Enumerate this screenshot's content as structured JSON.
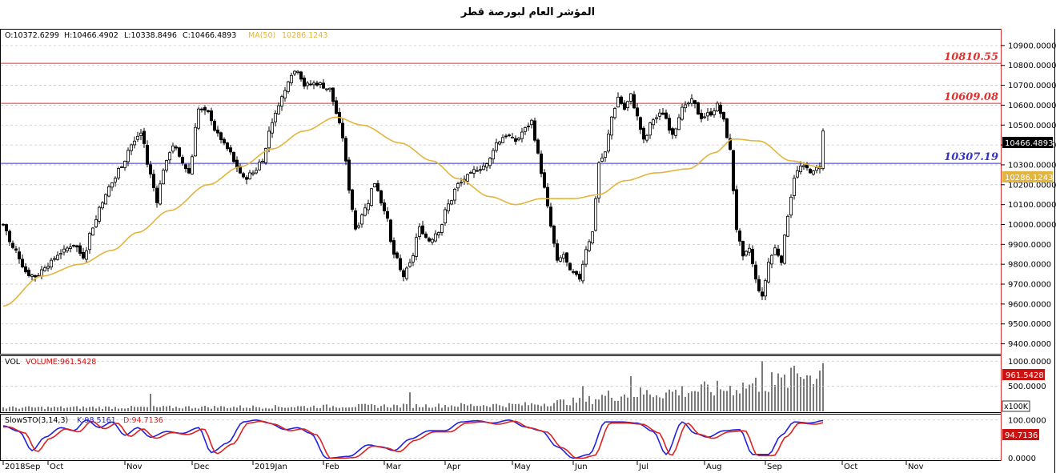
{
  "page": {
    "title": "المؤشر العام لبورصة قطر"
  },
  "colors": {
    "up": "#000000",
    "down": "#000000",
    "ma": "#e3b53f",
    "resistance": "#e03030",
    "support": "#3333cc",
    "stoch_k": "#2222dd",
    "stoch_d": "#dd2222",
    "grid": "#c8c8c8",
    "last_price_bg": "#000000",
    "ma_label_bg": "#e3b53f",
    "vol_label_bg": "#cc1111",
    "stoch_label_bg": "#cc1111"
  },
  "chart_data": {
    "type": "candlestick",
    "price_panel": {
      "ohlc_label": {
        "open": "O:10372.6299",
        "high": "H:10466.4902",
        "low": "L:10338.8496",
        "close": "C:10466.4893"
      },
      "ma_label": "MA(50)",
      "ma_value": "10286.1243",
      "ylim": [
        9350,
        10980
      ],
      "y_ticks": [
        "10900.0000",
        "10800.0000",
        "10700.0000",
        "10600.0000",
        "10500.0000",
        "10400.0000",
        "10300.0000",
        "10200.0000",
        "10100.0000",
        "10000.0000",
        "9900.0000",
        "9800.0000",
        "9700.0000",
        "9600.0000",
        "9500.0000",
        "9400.0000"
      ],
      "last_price": "10466.4893",
      "ma_last": "10286.1243",
      "levels": [
        {
          "value": 10810.55,
          "label": "10810.55",
          "kind": "resistance"
        },
        {
          "value": 10609.08,
          "label": "10609.08",
          "kind": "resistance"
        },
        {
          "value": 10307.19,
          "label": "10307.19",
          "kind": "support"
        }
      ],
      "close_anchors": [
        [
          0,
          10000
        ],
        [
          3,
          9880
        ],
        [
          8,
          9750
        ],
        [
          10,
          9740
        ],
        [
          14,
          9800
        ],
        [
          18,
          9860
        ],
        [
          22,
          9900
        ],
        [
          25,
          9840
        ],
        [
          28,
          9990
        ],
        [
          31,
          10120
        ],
        [
          34,
          10210
        ],
        [
          37,
          10300
        ],
        [
          40,
          10400
        ],
        [
          43,
          10460
        ],
        [
          46,
          10250
        ],
        [
          48,
          10120
        ],
        [
          50,
          10280
        ],
        [
          53,
          10400
        ],
        [
          56,
          10310
        ],
        [
          58,
          10260
        ],
        [
          61,
          10580
        ],
        [
          64,
          10560
        ],
        [
          67,
          10450
        ],
        [
          70,
          10380
        ],
        [
          73,
          10290
        ],
        [
          75,
          10230
        ],
        [
          78,
          10260
        ],
        [
          81,
          10330
        ],
        [
          84,
          10520
        ],
        [
          87,
          10640
        ],
        [
          90,
          10760
        ],
        [
          92,
          10780
        ],
        [
          94,
          10700
        ],
        [
          98,
          10710
        ],
        [
          102,
          10680
        ],
        [
          104,
          10560
        ],
        [
          106,
          10440
        ],
        [
          108,
          10180
        ],
        [
          110,
          9980
        ],
        [
          113,
          10080
        ],
        [
          116,
          10210
        ],
        [
          119,
          10080
        ],
        [
          122,
          9850
        ],
        [
          125,
          9740
        ],
        [
          127,
          9800
        ],
        [
          130,
          9980
        ],
        [
          133,
          9920
        ],
        [
          136,
          9970
        ],
        [
          139,
          10100
        ],
        [
          142,
          10200
        ],
        [
          145,
          10240
        ],
        [
          148,
          10280
        ],
        [
          151,
          10300
        ],
        [
          154,
          10410
        ],
        [
          157,
          10450
        ],
        [
          160,
          10420
        ],
        [
          163,
          10480
        ],
        [
          165,
          10520
        ],
        [
          167,
          10350
        ],
        [
          169,
          10180
        ],
        [
          171,
          9990
        ],
        [
          173,
          9810
        ],
        [
          175,
          9850
        ],
        [
          177,
          9760
        ],
        [
          180,
          9730
        ],
        [
          182,
          9880
        ],
        [
          184,
          9960
        ],
        [
          186,
          10310
        ],
        [
          188,
          10360
        ],
        [
          190,
          10540
        ],
        [
          192,
          10640
        ],
        [
          194,
          10580
        ],
        [
          196,
          10650
        ],
        [
          198,
          10540
        ],
        [
          200,
          10420
        ],
        [
          203,
          10530
        ],
        [
          206,
          10560
        ],
        [
          209,
          10460
        ],
        [
          212,
          10580
        ],
        [
          215,
          10620
        ],
        [
          218,
          10540
        ],
        [
          221,
          10560
        ],
        [
          223,
          10600
        ],
        [
          225,
          10520
        ],
        [
          227,
          10370
        ],
        [
          229,
          9980
        ],
        [
          231,
          9830
        ],
        [
          233,
          9880
        ],
        [
          235,
          9720
        ],
        [
          237,
          9630
        ],
        [
          239,
          9810
        ],
        [
          241,
          9880
        ],
        [
          243,
          9820
        ],
        [
          245,
          10050
        ],
        [
          247,
          10240
        ],
        [
          249,
          10290
        ],
        [
          251,
          10280
        ],
        [
          253,
          10260
        ],
        [
          255,
          10300
        ],
        [
          256,
          10466
        ]
      ],
      "ma_anchors": [
        [
          0,
          9590
        ],
        [
          12,
          9740
        ],
        [
          24,
          9800
        ],
        [
          34,
          9870
        ],
        [
          42,
          9960
        ],
        [
          52,
          10070
        ],
        [
          64,
          10200
        ],
        [
          74,
          10290
        ],
        [
          84,
          10380
        ],
        [
          94,
          10470
        ],
        [
          104,
          10540
        ],
        [
          112,
          10500
        ],
        [
          124,
          10410
        ],
        [
          134,
          10320
        ],
        [
          142,
          10230
        ],
        [
          152,
          10140
        ],
        [
          160,
          10100
        ],
        [
          168,
          10130
        ],
        [
          178,
          10130
        ],
        [
          186,
          10150
        ],
        [
          194,
          10220
        ],
        [
          204,
          10260
        ],
        [
          214,
          10280
        ],
        [
          222,
          10360
        ],
        [
          228,
          10430
        ],
        [
          236,
          10420
        ],
        [
          246,
          10320
        ],
        [
          256,
          10286
        ]
      ]
    },
    "volume_panel": {
      "label": "VOL",
      "value_label": "VOLUME:961.5428",
      "unit": "x100K",
      "ylim": [
        0,
        1100
      ],
      "y_ticks": [
        "1000.0000",
        "500.0000"
      ],
      "last_value": "961.5428",
      "base": [
        [
          0,
          75
        ],
        [
          40,
          80
        ],
        [
          80,
          90
        ],
        [
          120,
          110
        ],
        [
          160,
          130
        ],
        [
          180,
          200
        ],
        [
          190,
          320
        ],
        [
          200,
          360
        ],
        [
          220,
          430
        ],
        [
          240,
          560
        ],
        [
          256,
          800
        ]
      ],
      "spikes": [
        [
          46,
          350
        ],
        [
          127,
          380
        ],
        [
          181,
          510
        ],
        [
          196,
          700
        ],
        [
          237,
          1000
        ],
        [
          240,
          780
        ],
        [
          246,
          870
        ],
        [
          251,
          720
        ],
        [
          256,
          961.5428
        ]
      ]
    },
    "stoch_panel": {
      "label": "SlowSTO(3,14,3)",
      "k_label": "K:98.5161",
      "d_label": "D:94.7136",
      "ylim": [
        -5,
        110
      ],
      "y_ticks": [
        "100.0000",
        "0.0000"
      ],
      "last_value": "94.7136",
      "k_anchors": [
        [
          0,
          85
        ],
        [
          5,
          70
        ],
        [
          9,
          20
        ],
        [
          13,
          55
        ],
        [
          18,
          80
        ],
        [
          22,
          72
        ],
        [
          26,
          100
        ],
        [
          30,
          80
        ],
        [
          34,
          95
        ],
        [
          38,
          60
        ],
        [
          42,
          80
        ],
        [
          46,
          55
        ],
        [
          51,
          70
        ],
        [
          56,
          65
        ],
        [
          61,
          80
        ],
        [
          65,
          15
        ],
        [
          70,
          40
        ],
        [
          75,
          95
        ],
        [
          79,
          100
        ],
        [
          83,
          92
        ],
        [
          88,
          75
        ],
        [
          92,
          80
        ],
        [
          96,
          65
        ],
        [
          101,
          0
        ],
        [
          108,
          5
        ],
        [
          114,
          35
        ],
        [
          118,
          30
        ],
        [
          122,
          20
        ],
        [
          127,
          50
        ],
        [
          133,
          72
        ],
        [
          138,
          72
        ],
        [
          143,
          95
        ],
        [
          148,
          98
        ],
        [
          153,
          92
        ],
        [
          158,
          100
        ],
        [
          163,
          82
        ],
        [
          168,
          72
        ],
        [
          173,
          30
        ],
        [
          178,
          0
        ],
        [
          183,
          10
        ],
        [
          188,
          95
        ],
        [
          193,
          95
        ],
        [
          198,
          92
        ],
        [
          203,
          70
        ],
        [
          207,
          10
        ],
        [
          212,
          95
        ],
        [
          216,
          65
        ],
        [
          220,
          55
        ],
        [
          225,
          72
        ],
        [
          230,
          75
        ],
        [
          234,
          10
        ],
        [
          239,
          10
        ],
        [
          243,
          60
        ],
        [
          247,
          95
        ],
        [
          252,
          92
        ],
        [
          256,
          98.5161
        ]
      ],
      "d_lag": 1.6
    },
    "x_axis": {
      "labels": [
        {
          "text": "2018Sep",
          "bar": 0
        },
        {
          "text": "Oct",
          "bar": 14
        },
        {
          "text": "Nov",
          "bar": 38
        },
        {
          "text": "Dec",
          "bar": 59
        },
        {
          "text": "2019Jan",
          "bar": 78
        },
        {
          "text": "Feb",
          "bar": 100
        },
        {
          "text": "Mar",
          "bar": 119
        },
        {
          "text": "Apr",
          "bar": 138
        },
        {
          "text": "May",
          "bar": 159
        },
        {
          "text": "Jun",
          "bar": 178
        },
        {
          "text": "Jul",
          "bar": 198
        },
        {
          "text": "Aug",
          "bar": 219
        },
        {
          "text": "Sep",
          "bar": 238
        },
        {
          "text": "Oct",
          "bar": 262
        },
        {
          "text": "Nov",
          "bar": 282
        }
      ],
      "bar_count": 257
    }
  }
}
